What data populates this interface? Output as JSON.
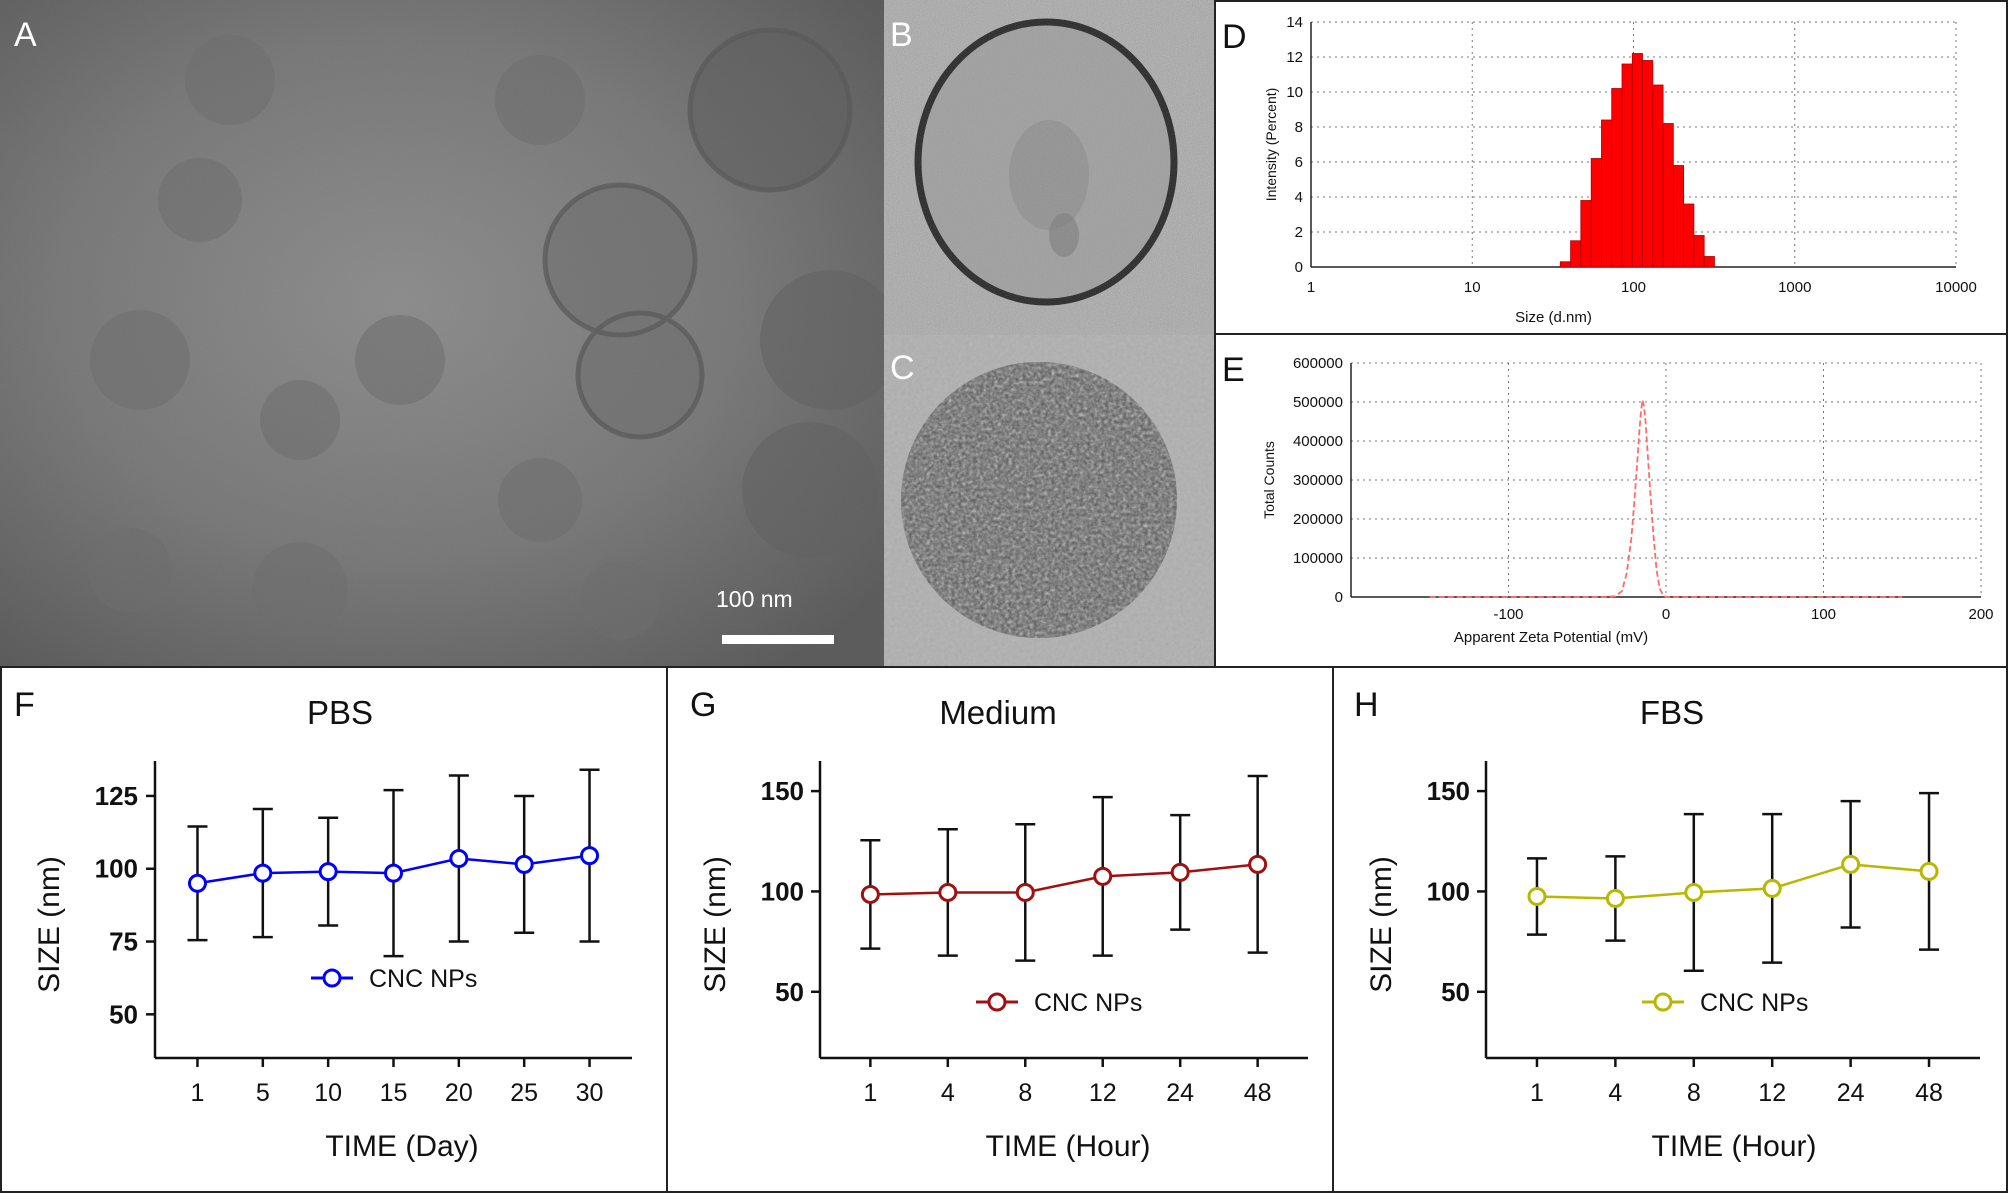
{
  "panel_letters": [
    "A",
    "B",
    "C",
    "D",
    "E",
    "F",
    "G",
    "H"
  ],
  "scale_bar_label": "100 nm",
  "chart_data": [
    {
      "panel": "D",
      "type": "bar",
      "xlabel": "Size (d.nm)",
      "ylabel": "Intensity (Percent)",
      "x_scale": "log",
      "xlim": [
        1,
        10000
      ],
      "ylim": [
        0,
        14
      ],
      "x_ticks": [
        "1",
        "10",
        "100",
        "1000",
        "10000"
      ],
      "y_ticks": [
        "0",
        "2",
        "4",
        "6",
        "8",
        "10",
        "12",
        "14"
      ],
      "grid": true,
      "bar_color": "#ff0000",
      "bins": [
        {
          "x": 37.8,
          "y": 0.3
        },
        {
          "x": 43.8,
          "y": 1.5
        },
        {
          "x": 50.7,
          "y": 3.8
        },
        {
          "x": 58.8,
          "y": 6.2
        },
        {
          "x": 68.1,
          "y": 8.4
        },
        {
          "x": 78.8,
          "y": 10.2
        },
        {
          "x": 91.3,
          "y": 11.6
        },
        {
          "x": 105.7,
          "y": 12.2
        },
        {
          "x": 122.4,
          "y": 11.8
        },
        {
          "x": 141.8,
          "y": 10.4
        },
        {
          "x": 164.2,
          "y": 8.2
        },
        {
          "x": 190.1,
          "y": 5.8
        },
        {
          "x": 220.2,
          "y": 3.6
        },
        {
          "x": 255.0,
          "y": 1.8
        },
        {
          "x": 295.3,
          "y": 0.6
        }
      ]
    },
    {
      "panel": "E",
      "type": "line",
      "xlabel": "Apparent Zeta Potential (mV)",
      "ylabel": "Total Counts",
      "xlim": [
        -200,
        200
      ],
      "ylim": [
        0,
        600000
      ],
      "x_ticks": [
        "-100",
        "0",
        "100",
        "200"
      ],
      "y_ticks": [
        "0",
        "100000",
        "200000",
        "300000",
        "400000",
        "500000",
        "600000"
      ],
      "grid": true,
      "line_color": "#ff6b6b",
      "x": [
        -150,
        -40,
        -32,
        -28,
        -25,
        -22,
        -20,
        -18,
        -17,
        -16,
        -15,
        -14,
        -13,
        -12,
        -10,
        -8,
        -6,
        -4,
        -2,
        0,
        50,
        150
      ],
      "y": [
        0,
        0,
        2000,
        15000,
        60000,
        150000,
        250000,
        360000,
        420000,
        470000,
        505000,
        490000,
        450000,
        390000,
        270000,
        160000,
        70000,
        22000,
        5000,
        0,
        0,
        0
      ]
    },
    {
      "panel": "F",
      "type": "line",
      "title": "PBS",
      "xlabel": "TIME (Day)",
      "ylabel": "SIZE (nm)",
      "categories": [
        "1",
        "5",
        "10",
        "15",
        "20",
        "25",
        "30"
      ],
      "ylim": [
        35,
        137
      ],
      "y_ticks": [
        50,
        75,
        100,
        125
      ],
      "color": "#0000ff",
      "series": [
        {
          "name": "CNC NPs",
          "values": [
            95,
            98.5,
            99,
            98.5,
            103.5,
            101.5,
            104.5
          ],
          "err": [
            19.5,
            22,
            18.5,
            28.5,
            28.5,
            23.5,
            29.5
          ]
        }
      ]
    },
    {
      "panel": "G",
      "type": "line",
      "title": "Medium",
      "xlabel": "TIME (Hour)",
      "ylabel": "SIZE (nm)",
      "categories": [
        "1",
        "4",
        "8",
        "12",
        "24",
        "48"
      ],
      "ylim": [
        17,
        165
      ],
      "y_ticks": [
        50,
        100,
        150
      ],
      "color": "#a01010",
      "series": [
        {
          "name": "CNC NPs",
          "values": [
            98.5,
            99.5,
            99.5,
            107.5,
            109.5,
            113.5
          ],
          "err": [
            27,
            31.5,
            34,
            39.5,
            28.5,
            44
          ]
        }
      ]
    },
    {
      "panel": "H",
      "type": "line",
      "title": "FBS",
      "xlabel": "TIME (Hour)",
      "ylabel": "SIZE (nm)",
      "categories": [
        "1",
        "4",
        "8",
        "12",
        "24",
        "48"
      ],
      "ylim": [
        17,
        165
      ],
      "y_ticks": [
        50,
        100,
        150
      ],
      "color": "#b8b800",
      "series": [
        {
          "name": "CNC NPs",
          "values": [
            97.5,
            96.5,
            99.5,
            101.5,
            113.5,
            110
          ],
          "err": [
            19,
            21,
            39,
            37,
            31.5,
            39
          ]
        }
      ]
    }
  ]
}
